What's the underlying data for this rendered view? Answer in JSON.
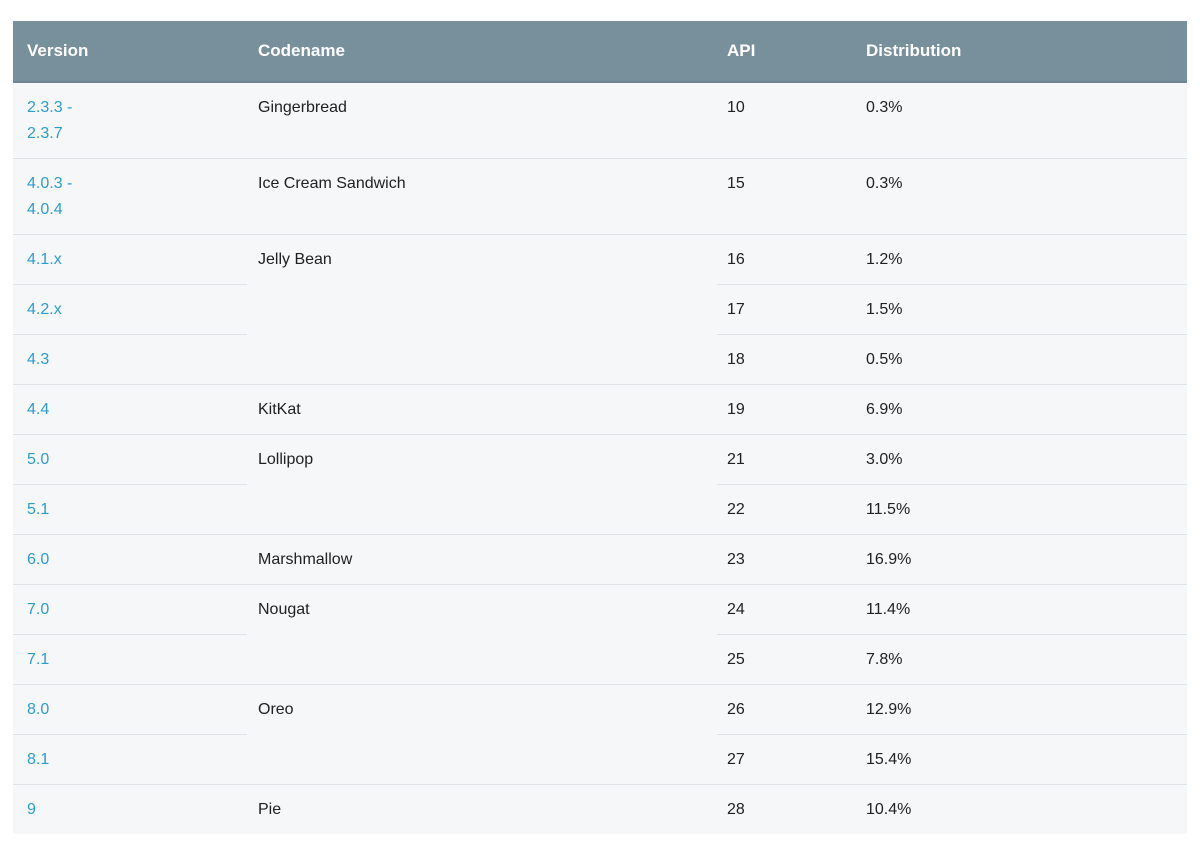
{
  "table": {
    "columns": [
      {
        "key": "version",
        "label": "Version"
      },
      {
        "key": "codename",
        "label": "Codename"
      },
      {
        "key": "api",
        "label": "API"
      },
      {
        "key": "distribution",
        "label": "Distribution"
      }
    ],
    "groups": [
      {
        "codename": "Gingerbread",
        "rows": [
          {
            "version": "2.3.3 -\n2.3.7",
            "api": "10",
            "distribution": "0.3%"
          }
        ]
      },
      {
        "codename": "Ice Cream Sandwich",
        "rows": [
          {
            "version": "4.0.3 -\n4.0.4",
            "api": "15",
            "distribution": "0.3%"
          }
        ]
      },
      {
        "codename": "Jelly Bean",
        "rows": [
          {
            "version": "4.1.x",
            "api": "16",
            "distribution": "1.2%"
          },
          {
            "version": "4.2.x",
            "api": "17",
            "distribution": "1.5%"
          },
          {
            "version": "4.3",
            "api": "18",
            "distribution": "0.5%"
          }
        ]
      },
      {
        "codename": "KitKat",
        "rows": [
          {
            "version": "4.4",
            "api": "19",
            "distribution": "6.9%"
          }
        ]
      },
      {
        "codename": "Lollipop",
        "rows": [
          {
            "version": "5.0",
            "api": "21",
            "distribution": "3.0%"
          },
          {
            "version": "5.1",
            "api": "22",
            "distribution": "11.5%"
          }
        ]
      },
      {
        "codename": "Marshmallow",
        "rows": [
          {
            "version": "6.0",
            "api": "23",
            "distribution": "16.9%"
          }
        ]
      },
      {
        "codename": "Nougat",
        "rows": [
          {
            "version": "7.0",
            "api": "24",
            "distribution": "11.4%"
          },
          {
            "version": "7.1",
            "api": "25",
            "distribution": "7.8%"
          }
        ]
      },
      {
        "codename": "Oreo",
        "rows": [
          {
            "version": "8.0",
            "api": "26",
            "distribution": "12.9%"
          },
          {
            "version": "8.1",
            "api": "27",
            "distribution": "15.4%"
          }
        ]
      },
      {
        "codename": "Pie",
        "rows": [
          {
            "version": "9",
            "api": "28",
            "distribution": "10.4%"
          }
        ]
      }
    ]
  },
  "colors": {
    "header_bg": "#78909c",
    "header_text": "#ffffff",
    "row_bg": "#f5f7f8",
    "divider": "#dde3e6",
    "link_blue": "#2b9dd6",
    "cell_text": "#212121"
  }
}
